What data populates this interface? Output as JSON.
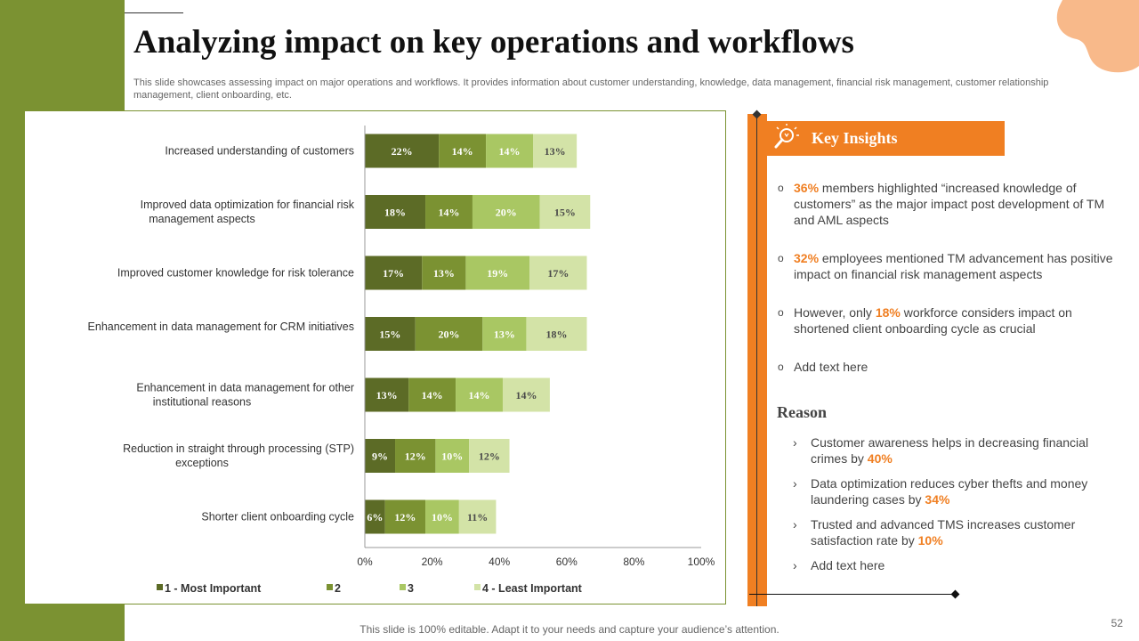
{
  "slide": {
    "title": "Analyzing impact on key operations and workflows",
    "subtitle": "This slide showcases assessing impact on major operations and workflows. It provides information about customer understanding, knowledge, data management, financial risk management, customer relationship management, client onboarding, etc.",
    "footer": "This slide is 100% editable. Adapt it to your needs and capture your audience’s attention.",
    "page_number": "52"
  },
  "colors": {
    "band": "#7b9232",
    "accent": "#f07f22",
    "series": [
      "#5c6b26",
      "#7b9232",
      "#a9c763",
      "#d3e3a7"
    ],
    "label_dark": "#ffffff",
    "label_light": "#4a4a4a"
  },
  "chart_data": {
    "type": "bar",
    "orientation": "horizontal",
    "stacked": true,
    "categories": [
      "Increased understanding  of customers",
      "Improved data optimization for financial risk management aspects",
      "Improved customer knowledge for risk tolerance",
      "Enhancement in data management for CRM initiatives",
      "Enhancement in data management for other institutional reasons",
      "Reduction in straight through processing (STP) exceptions",
      "Shorter client onboarding cycle"
    ],
    "series": [
      {
        "name": "1 - Most Important",
        "values": [
          22,
          18,
          17,
          15,
          13,
          9,
          6
        ]
      },
      {
        "name": "2",
        "values": [
          14,
          14,
          13,
          20,
          14,
          12,
          12
        ]
      },
      {
        "name": "3",
        "values": [
          14,
          20,
          19,
          13,
          14,
          10,
          10
        ]
      },
      {
        "name": "4 - Least Important",
        "values": [
          13,
          15,
          17,
          18,
          14,
          12,
          11
        ]
      }
    ],
    "value_suffix": "%",
    "x_ticks": [
      "0%",
      "20%",
      "40%",
      "60%",
      "80%",
      "100%"
    ],
    "xlim": [
      0,
      100
    ],
    "grid": false,
    "legend_position": "bottom"
  },
  "key_insights": {
    "title": "Key Insights",
    "bullet": "o",
    "items": [
      {
        "highlight": "36%",
        "text": " members highlighted “increased knowledge of customers” as the major impact post development of TM and AML aspects"
      },
      {
        "highlight": "32%",
        "text": " employees mentioned TM advancement has positive impact on financial risk management aspects"
      },
      {
        "pre": "However, only ",
        "highlight": "18%",
        "text": " workforce considers impact on shortened client onboarding cycle as crucial"
      },
      {
        "text": "Add text here"
      }
    ]
  },
  "reason": {
    "title": "Reason",
    "bullet": "›",
    "items": [
      {
        "text": "Customer awareness helps in decreasing financial crimes by ",
        "highlight": "40%"
      },
      {
        "text": "Data optimization reduces cyber thefts and money laundering cases by ",
        "highlight": "34%"
      },
      {
        "text": "Trusted and advanced TMS increases customer satisfaction rate by ",
        "highlight": "10%"
      },
      {
        "text": "Add text here"
      }
    ]
  }
}
